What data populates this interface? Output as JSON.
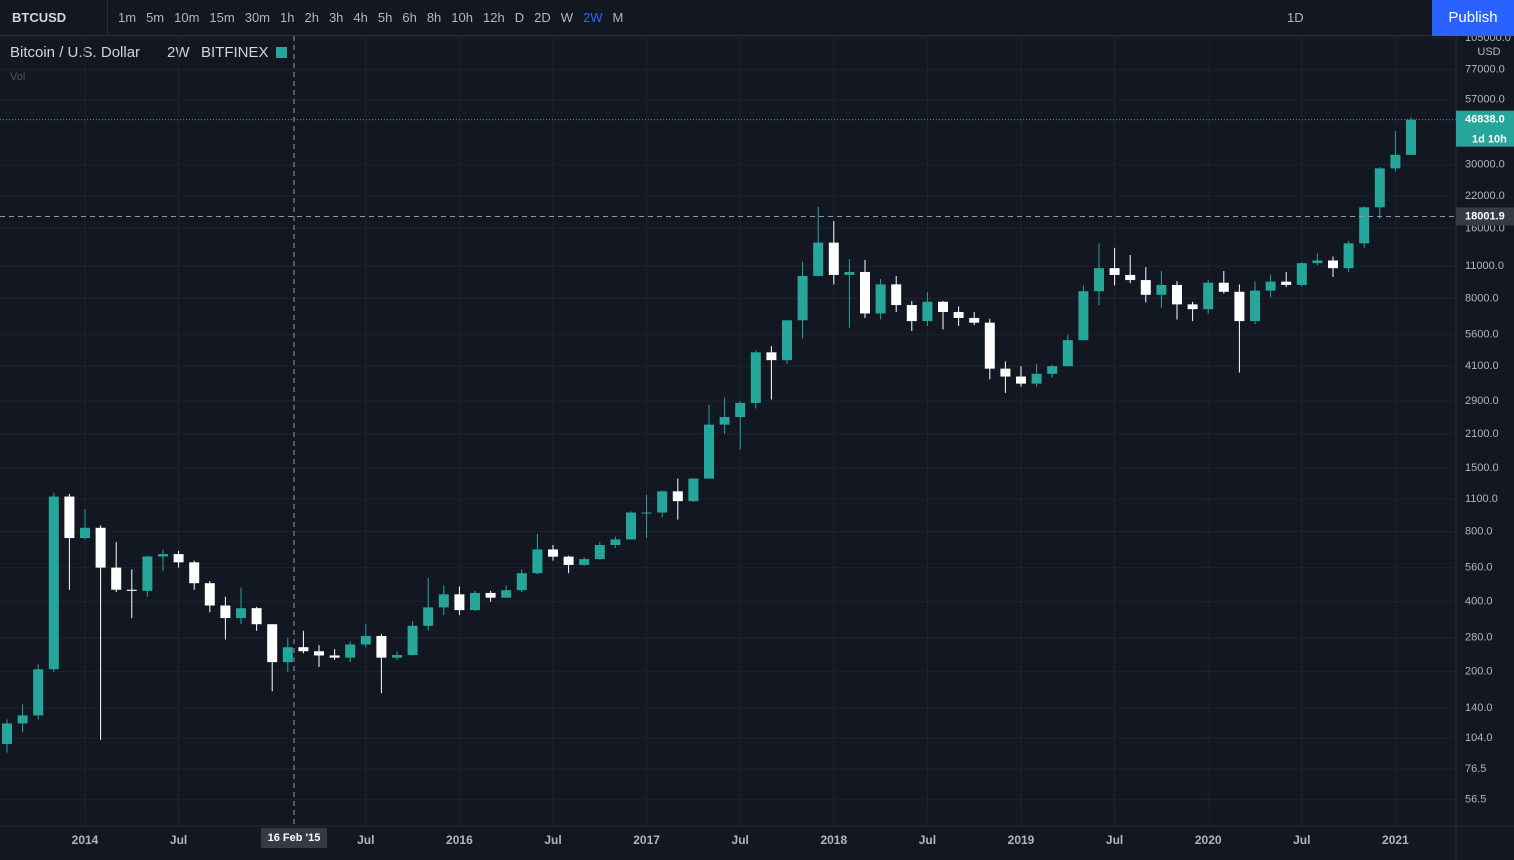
{
  "toolbar": {
    "symbol": "BTCUSD",
    "intervals": [
      "1m",
      "5m",
      "10m",
      "15m",
      "30m",
      "1h",
      "2h",
      "3h",
      "4h",
      "5h",
      "6h",
      "8h",
      "10h",
      "12h",
      "D",
      "2D",
      "W",
      "2W",
      "M"
    ],
    "active": 17,
    "range": "1D",
    "publish": "Publish"
  },
  "legend": {
    "name": "Bitcoin / U.S. Dollar",
    "interval": "2W",
    "exchange": "BITFINEX",
    "volume": "Vol"
  },
  "chart_data": {
    "type": "candlestick",
    "currency": "USD",
    "log_scale": true,
    "grid": true,
    "up_color": "#26a69a",
    "down_color": "#ffffff",
    "categories": [
      null,
      null,
      null,
      null,
      null,
      "2014",
      null,
      null,
      null,
      null,
      null,
      "Jul",
      null,
      null,
      null,
      null,
      null,
      null,
      null,
      null,
      null,
      null,
      null,
      "Jul",
      null,
      null,
      null,
      null,
      null,
      "2016",
      null,
      null,
      null,
      null,
      null,
      "Jul",
      null,
      null,
      null,
      null,
      null,
      "2017",
      null,
      null,
      null,
      null,
      null,
      "Jul",
      null,
      null,
      null,
      null,
      null,
      "2018",
      null,
      null,
      null,
      null,
      null,
      "Jul",
      null,
      null,
      null,
      null,
      null,
      "2019",
      null,
      null,
      null,
      null,
      null,
      "Jul",
      null,
      null,
      null,
      null,
      null,
      "2020",
      null,
      null,
      null,
      null,
      null,
      "Jul",
      null,
      null,
      null,
      null,
      null,
      "2021",
      null
    ],
    "open": [
      98,
      120,
      130,
      205,
      1130,
      750,
      830,
      560,
      450,
      445,
      625,
      640,
      590,
      480,
      385,
      340,
      375,
      320,
      220,
      255,
      245,
      235,
      230,
      262,
      285,
      230,
      236,
      315,
      378,
      430,
      368,
      436,
      416,
      448,
      530,
      670,
      624,
      575,
      609,
      700,
      740,
      965,
      965,
      1190,
      1080,
      1350,
      2300,
      2480,
      2850,
      4700,
      4350,
      6450,
      10000,
      13900,
      10100,
      10400,
      6900,
      9200,
      7500,
      6400,
      7750,
      7000,
      6600,
      6300,
      4000,
      3700,
      3450,
      3800,
      4100,
      5300,
      8600,
      10800,
      10100,
      9600,
      8300,
      9150,
      7550,
      7200,
      9350,
      8550,
      6400,
      8650,
      9450,
      9150,
      11350,
      11650,
      10800,
      13800,
      19700,
      28950,
      33100
    ],
    "high": [
      125,
      145,
      215,
      1175,
      1160,
      1000,
      850,
      720,
      550,
      630,
      670,
      660,
      600,
      490,
      420,
      460,
      380,
      320,
      280,
      300,
      260,
      250,
      270,
      320,
      290,
      245,
      330,
      505,
      470,
      465,
      445,
      445,
      470,
      550,
      780,
      700,
      630,
      620,
      720,
      760,
      975,
      1150,
      1200,
      1350,
      1350,
      2800,
      3000,
      2900,
      4800,
      5000,
      6450,
      11500,
      19800,
      17200,
      11800,
      11700,
      9700,
      10000,
      7800,
      8500,
      7800,
      7400,
      7000,
      6550,
      4300,
      4100,
      4200,
      4150,
      5600,
      9100,
      13800,
      13200,
      12300,
      10900,
      10500,
      9500,
      7750,
      9600,
      10500,
      9200,
      9450,
      10100,
      10400,
      11450,
      12500,
      12100,
      14100,
      19900,
      29300,
      41900,
      48000
    ],
    "low": [
      90,
      110,
      125,
      200,
      450,
      740,
      102,
      440,
      340,
      420,
      540,
      560,
      450,
      360,
      275,
      320,
      300,
      165,
      200,
      240,
      210,
      225,
      220,
      255,
      162,
      225,
      235,
      300,
      350,
      350,
      365,
      400,
      415,
      440,
      525,
      600,
      530,
      570,
      605,
      680,
      740,
      750,
      920,
      900,
      1070,
      1350,
      2100,
      1800,
      2700,
      2950,
      4200,
      5400,
      10000,
      9200,
      6000,
      6600,
      6500,
      7000,
      5800,
      6100,
      5900,
      6100,
      6150,
      3600,
      3150,
      3350,
      3350,
      3650,
      4100,
      5300,
      7500,
      9100,
      9300,
      7700,
      7300,
      6500,
      6400,
      6900,
      8400,
      3850,
      6200,
      8100,
      8950,
      9000,
      11100,
      9900,
      10400,
      13200,
      17600,
      28100,
      33000
    ],
    "close": [
      120,
      130,
      205,
      1130,
      750,
      830,
      560,
      450,
      445,
      625,
      640,
      590,
      480,
      385,
      340,
      375,
      320,
      220,
      255,
      245,
      235,
      230,
      262,
      285,
      230,
      236,
      315,
      378,
      430,
      368,
      436,
      416,
      448,
      530,
      670,
      624,
      575,
      609,
      700,
      740,
      965,
      965,
      1190,
      1080,
      1350,
      2300,
      2480,
      2850,
      4700,
      4350,
      6450,
      10000,
      13900,
      10100,
      10400,
      6900,
      9200,
      7500,
      6400,
      7750,
      7000,
      6600,
      6300,
      4000,
      3700,
      3450,
      3800,
      4100,
      5300,
      8600,
      10800,
      10100,
      9600,
      8300,
      9150,
      7550,
      7200,
      9350,
      8550,
      6400,
      8650,
      9450,
      9150,
      11350,
      11650,
      10800,
      13800,
      19700,
      28950,
      33100,
      46838
    ],
    "ylim": [
      44,
      105000
    ],
    "yticks": [
      {
        "value": 56.5,
        "label": "56.5"
      },
      {
        "value": 76.5,
        "label": "76.5"
      },
      {
        "value": 104,
        "label": "104.0"
      },
      {
        "value": 140,
        "label": "140.0"
      },
      {
        "value": 200,
        "label": "200.0"
      },
      {
        "value": 280,
        "label": "280.0"
      },
      {
        "value": 400,
        "label": "400.0"
      },
      {
        "value": 560,
        "label": "560.0"
      },
      {
        "value": 800,
        "label": "800.0"
      },
      {
        "value": 1100,
        "label": "1100.0"
      },
      {
        "value": 1500,
        "label": "1500.0"
      },
      {
        "value": 2100,
        "label": "2100.0"
      },
      {
        "value": 2900,
        "label": "2900.0"
      },
      {
        "value": 4100,
        "label": "4100.0"
      },
      {
        "value": 5600,
        "label": "5600.0"
      },
      {
        "value": 8000,
        "label": "8000.0"
      },
      {
        "value": 11000,
        "label": "11000.0"
      },
      {
        "value": 16000,
        "label": "16000.0"
      },
      {
        "value": 22000,
        "label": "22000.0"
      },
      {
        "value": 30000,
        "label": "30000.0"
      },
      {
        "value": 57000,
        "label": "57000.0"
      },
      {
        "value": 77000,
        "label": "77000.0"
      },
      {
        "value": 105000,
        "label": "105000.0"
      }
    ],
    "last_price": {
      "value": 46838,
      "label": "46838.0"
    },
    "countdown": "1d 10h",
    "crosshair_price": {
      "value": 18001.9,
      "label": "18001.9"
    },
    "crosshair_date": "16 Feb '15"
  }
}
